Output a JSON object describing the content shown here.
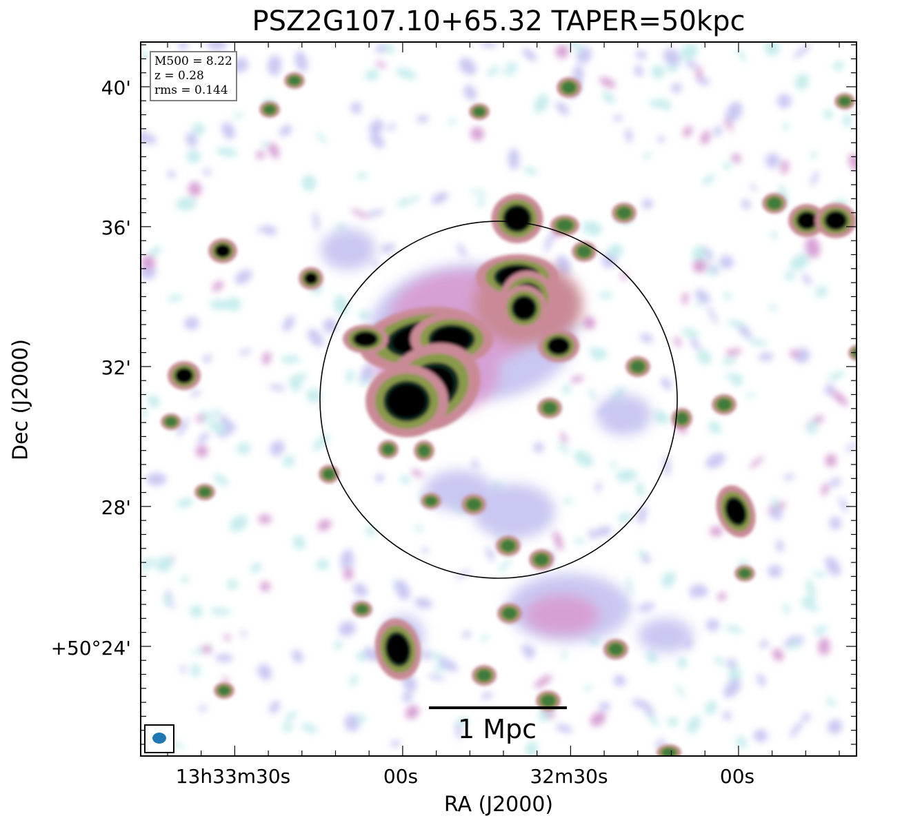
{
  "title": "PSZ2G107.10+65.32 TAPER=50kpc",
  "info": {
    "mass_line": "M500 = 8.22",
    "z_line": "z = 0.28",
    "rms_line": "rms = 0.144"
  },
  "axes": {
    "x_title": "RA (J2000)",
    "y_title": "Dec (J2000)",
    "x_ticks": [
      "13h33m30s",
      "00s",
      "32m30s",
      "00s"
    ],
    "y_ticks": [
      "40'",
      "36'",
      "32'",
      "28'",
      "+50°24'"
    ]
  },
  "scale_bar": {
    "label": "1 Mpc"
  },
  "beam": {
    "color": "#1f77b4",
    "icon": "beam-ellipse-icon"
  },
  "colormap": {
    "name": "cubehelix-reversed",
    "levels": [
      "#ffffff",
      "#c6ecec",
      "#c9c8f2",
      "#d7a0d4",
      "#c98a96",
      "#8a9a4c",
      "#3f7a3e",
      "#0f2a24",
      "#000000"
    ]
  },
  "circle": {
    "color": "#000000"
  }
}
